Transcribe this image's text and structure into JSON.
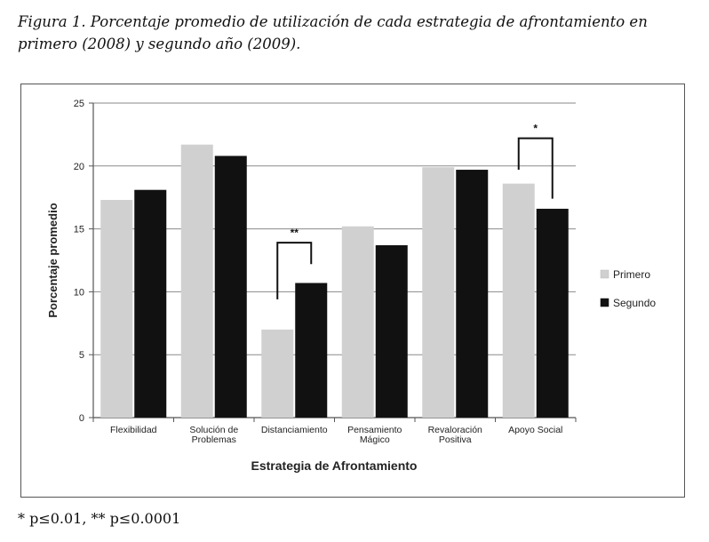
{
  "caption": "Figura 1. Porcentaje promedio de utilización de cada estrategia de afrontamiento en primero (2008) y segundo año (2009).",
  "footnote": "* p≤0.01, ** p≤0.0001",
  "chart_data": {
    "type": "bar",
    "xlabel": "Estrategia de Afrontamiento",
    "ylabel": "Porcentaje promedio",
    "ylim": [
      0,
      25
    ],
    "yticks": [
      0,
      5,
      10,
      15,
      20,
      25
    ],
    "grid": true,
    "legend_position": "right",
    "categories": [
      [
        "Flexibilidad"
      ],
      [
        "Solución de",
        "Problemas"
      ],
      [
        "Distanciamiento"
      ],
      [
        "Pensamiento",
        "Mágico"
      ],
      [
        "Revaloración",
        "Positiva"
      ],
      [
        "Apoyo Social"
      ]
    ],
    "series": [
      {
        "name": "Primero",
        "color": "#d0d0d0",
        "values": [
          17.3,
          21.7,
          7.0,
          15.2,
          19.9,
          18.6
        ]
      },
      {
        "name": "Segundo",
        "color": "#111111",
        "values": [
          18.1,
          20.8,
          10.7,
          13.7,
          19.7,
          16.6
        ]
      }
    ],
    "annotations": [
      {
        "category_index": 2,
        "label": "**",
        "left_value": 9.4,
        "right_value": 12.2,
        "top_value": 13.9
      },
      {
        "category_index": 5,
        "label": "*",
        "left_value": 19.7,
        "right_value": 17.4,
        "top_value": 22.2
      }
    ]
  }
}
